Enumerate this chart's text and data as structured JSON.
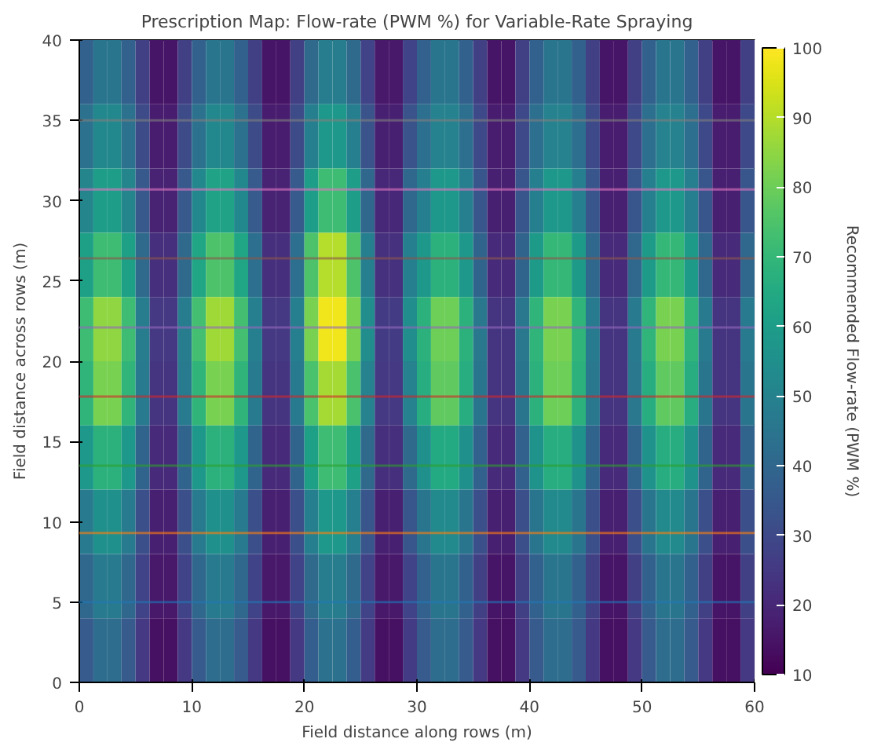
{
  "chart_data": {
    "type": "heatmap",
    "title": "Prescription Map: Flow-rate (PWM %) for Variable-Rate Spraying",
    "xlabel": "Field distance along rows (m)",
    "ylabel": "Field distance across rows (m)",
    "clabel": "Recommended Flow-rate (PWM %)",
    "x": [
      0.625,
      1.875,
      3.125,
      4.375,
      5.625,
      6.875,
      8.125,
      9.375,
      10.625,
      11.875,
      13.125,
      14.375,
      15.625,
      16.875,
      18.125,
      19.375,
      20.625,
      21.875,
      23.125,
      24.375,
      25.625,
      26.875,
      28.125,
      29.375,
      30.625,
      31.875,
      33.125,
      34.375,
      35.625,
      36.875,
      38.125,
      39.375,
      40.625,
      41.875,
      43.125,
      44.375,
      45.625,
      46.875,
      48.125,
      49.375,
      50.625,
      51.875,
      53.125,
      54.375,
      55.625,
      56.875,
      58.125,
      59.375
    ],
    "y": [
      38,
      34,
      30,
      26,
      22,
      18,
      14,
      10,
      6,
      2
    ],
    "cells": [
      [
        38,
        45,
        45,
        38,
        27,
        15,
        15,
        27,
        38,
        45,
        45,
        38,
        27,
        15,
        15,
        27,
        41,
        48,
        48,
        41,
        28,
        16,
        16,
        28,
        38,
        45,
        45,
        38,
        27,
        15,
        15,
        27,
        38,
        45,
        45,
        38,
        27,
        15,
        15,
        27,
        38,
        45,
        45,
        38,
        27,
        15,
        15,
        27
      ],
      [
        44,
        52,
        52,
        44,
        31,
        17,
        17,
        31,
        44,
        52,
        52,
        44,
        31,
        17,
        17,
        31,
        49,
        58,
        58,
        49,
        33,
        18,
        18,
        33,
        43,
        50,
        50,
        43,
        30,
        17,
        17,
        30,
        43,
        50,
        50,
        43,
        30,
        17,
        17,
        30,
        43,
        50,
        50,
        43,
        30,
        17,
        17,
        30
      ],
      [
        51,
        60,
        60,
        51,
        35,
        19,
        19,
        35,
        52,
        62,
        62,
        52,
        36,
        19,
        19,
        36,
        60,
        72,
        72,
        60,
        40,
        20,
        20,
        40,
        49,
        58,
        58,
        49,
        34,
        18,
        18,
        34,
        49,
        58,
        58,
        49,
        34,
        18,
        18,
        34,
        49,
        58,
        58,
        49,
        34,
        18,
        18,
        34
      ],
      [
        61,
        72,
        72,
        61,
        41,
        22,
        22,
        41,
        63,
        75,
        75,
        63,
        43,
        22,
        22,
        43,
        75,
        90,
        90,
        75,
        49,
        23,
        23,
        49,
        58,
        68,
        68,
        58,
        39,
        21,
        21,
        39,
        59,
        70,
        70,
        59,
        40,
        21,
        21,
        40,
        59,
        70,
        70,
        59,
        40,
        21,
        21,
        40
      ],
      [
        72,
        85,
        85,
        72,
        48,
        25,
        25,
        48,
        73,
        87,
        87,
        73,
        49,
        25,
        25,
        49,
        82,
        98,
        98,
        82,
        54,
        26,
        26,
        54,
        68,
        80,
        80,
        68,
        46,
        24,
        24,
        46,
        69,
        82,
        82,
        69,
        47,
        24,
        24,
        47,
        69,
        82,
        82,
        69,
        47,
        24,
        24,
        47
      ],
      [
        69,
        82,
        82,
        69,
        47,
        24,
        24,
        47,
        69,
        82,
        82,
        69,
        47,
        24,
        24,
        47,
        74,
        88,
        88,
        74,
        50,
        25,
        25,
        50,
        66,
        78,
        78,
        66,
        45,
        24,
        24,
        45,
        68,
        80,
        80,
        68,
        46,
        24,
        24,
        46,
        66,
        78,
        78,
        66,
        45,
        24,
        24,
        45
      ],
      [
        58,
        68,
        68,
        58,
        39,
        21,
        21,
        39,
        58,
        68,
        68,
        58,
        39,
        21,
        21,
        39,
        61,
        72,
        72,
        61,
        41,
        22,
        22,
        41,
        55,
        65,
        65,
        55,
        38,
        21,
        21,
        38,
        56,
        66,
        66,
        56,
        39,
        21,
        21,
        39,
        56,
        66,
        66,
        56,
        39,
        21,
        21,
        39
      ],
      [
        47,
        55,
        55,
        47,
        32,
        18,
        18,
        32,
        47,
        55,
        55,
        47,
        32,
        18,
        18,
        32,
        49,
        58,
        58,
        49,
        34,
        18,
        18,
        34,
        45,
        53,
        53,
        45,
        32,
        18,
        18,
        32,
        45,
        53,
        53,
        45,
        32,
        18,
        18,
        32,
        45,
        53,
        53,
        45,
        32,
        18,
        18,
        32
      ],
      [
        40,
        47,
        47,
        40,
        28,
        16,
        16,
        28,
        40,
        47,
        47,
        40,
        28,
        16,
        16,
        28,
        41,
        48,
        48,
        41,
        28,
        16,
        16,
        28,
        38,
        45,
        45,
        38,
        27,
        15,
        15,
        27,
        38,
        45,
        45,
        38,
        27,
        15,
        15,
        27,
        38,
        45,
        45,
        38,
        27,
        15,
        15,
        27
      ],
      [
        36,
        42,
        42,
        36,
        25,
        14,
        14,
        25,
        36,
        42,
        42,
        36,
        25,
        14,
        14,
        25,
        37,
        44,
        44,
        37,
        26,
        14,
        14,
        26,
        36,
        42,
        42,
        36,
        25,
        14,
        14,
        25,
        36,
        42,
        42,
        36,
        25,
        14,
        14,
        25,
        36,
        42,
        42,
        36,
        25,
        14,
        14,
        25
      ]
    ],
    "xlim": [
      0,
      60
    ],
    "ylim": [
      0,
      40
    ],
    "xticks": [
      0,
      10,
      20,
      30,
      40,
      50,
      60
    ],
    "yticks": [
      0,
      5,
      10,
      15,
      20,
      25,
      30,
      35,
      40
    ],
    "clim": [
      10,
      100
    ],
    "cticks": [
      10,
      20,
      30,
      40,
      50,
      60,
      70,
      80,
      90,
      100
    ],
    "ref_lines": [
      {
        "axis": "y",
        "value": 5,
        "label": null,
        "color": "#1f77b4"
      },
      {
        "axis": "y",
        "value": 9.3,
        "label": null,
        "color": "#ff7f0e"
      },
      {
        "axis": "y",
        "value": 13.5,
        "label": null,
        "color": "#2ca02c"
      },
      {
        "axis": "y",
        "value": 17.8,
        "label": null,
        "color": "#d62728"
      },
      {
        "axis": "y",
        "value": 22.1,
        "label": null,
        "color": "#9467bd"
      },
      {
        "axis": "y",
        "value": 26.4,
        "label": null,
        "color": "#8c564b"
      },
      {
        "axis": "y",
        "value": 30.7,
        "label": null,
        "color": "#e377c2"
      },
      {
        "axis": "y",
        "value": 35,
        "label": null,
        "color": "#7f7f7f"
      }
    ]
  }
}
